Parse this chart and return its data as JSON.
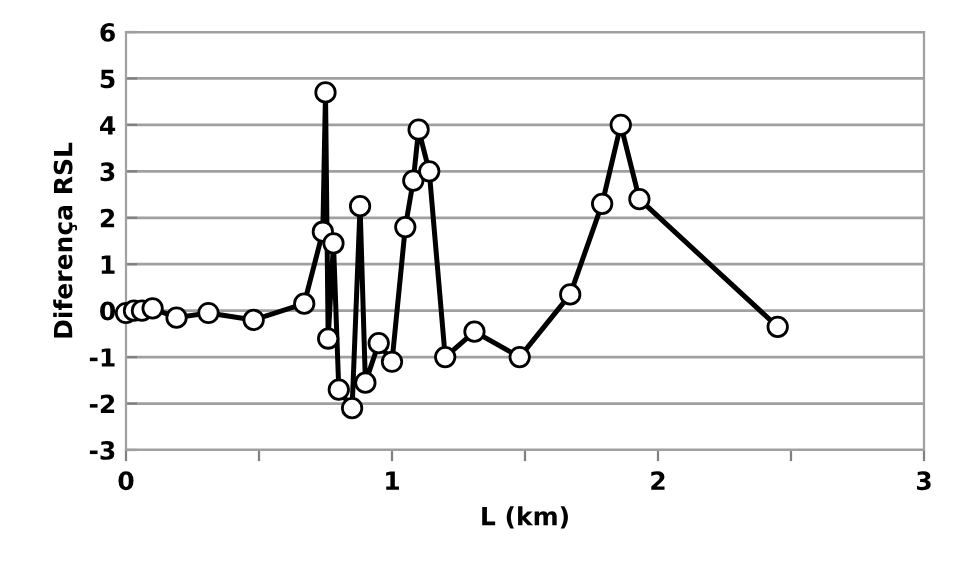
{
  "chart_data": {
    "type": "line",
    "xlabel": "L (km)",
    "ylabel": "Diferença RSL",
    "series": [
      {
        "color": "#000000",
        "x": [
          0.0,
          0.03,
          0.06,
          0.1,
          0.19,
          0.31,
          0.48,
          0.67,
          0.74,
          0.75,
          0.76,
          0.78,
          0.8,
          0.85,
          0.88,
          0.9,
          0.95,
          1.0,
          1.05,
          1.08,
          1.1,
          1.14,
          1.2,
          1.31,
          1.48,
          1.67,
          1.79,
          1.86,
          1.93,
          2.45
        ],
        "values": [
          -0.05,
          0.0,
          0.0,
          0.05,
          -0.15,
          -0.05,
          -0.2,
          0.15,
          1.7,
          4.7,
          -0.6,
          1.45,
          -1.7,
          -2.1,
          2.25,
          -1.55,
          -0.7,
          -1.1,
          1.8,
          2.8,
          3.9,
          3.0,
          -1.0,
          -0.45,
          -1.0,
          0.35,
          2.3,
          4.0,
          2.4,
          -0.35
        ]
      }
    ],
    "xlim": [
      0,
      3
    ],
    "xticks": [
      0,
      {
        "value": 0.5,
        "label": null
      },
      1,
      {
        "value": 1.5,
        "label": null
      },
      2,
      {
        "value": 2.5,
        "label": null
      },
      3
    ],
    "ylim": [
      -3,
      6
    ],
    "yticks": [
      -3,
      -2,
      -1,
      0,
      1,
      2,
      3,
      4,
      5,
      6
    ],
    "grid": "y",
    "marker": "circle",
    "line_style": "solid",
    "legend": false
  }
}
